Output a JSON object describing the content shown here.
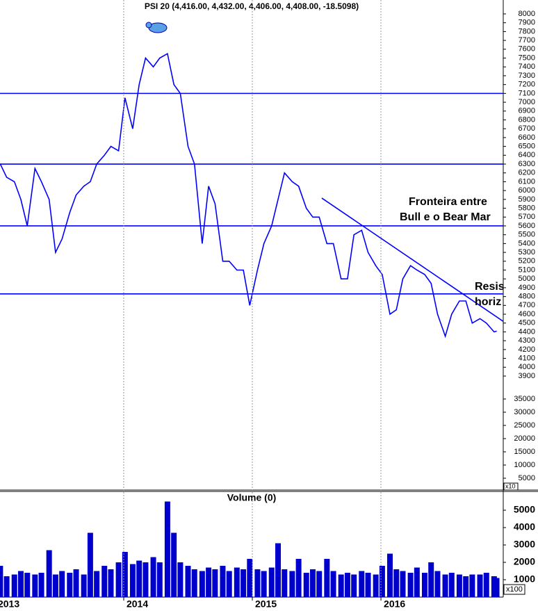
{
  "chart_data": [
    {
      "type": "line",
      "title": "PSI 20 (4,416.00, 4,432.00, 4,406.00, 4,408.00, -18.5098)",
      "x": [
        2013.04,
        2013.09,
        2013.15,
        2013.2,
        2013.25,
        2013.31,
        2013.36,
        2013.42,
        2013.47,
        2013.52,
        2013.58,
        2013.63,
        2013.69,
        2013.74,
        2013.79,
        2013.85,
        2013.9,
        2013.96,
        2014.01,
        2014.07,
        2014.12,
        2014.17,
        2014.23,
        2014.28,
        2014.34,
        2014.39,
        2014.44,
        2014.5,
        2014.55,
        2014.61,
        2014.66,
        2014.71,
        2014.77,
        2014.82,
        2014.88,
        2014.93,
        2014.98,
        2015.04,
        2015.09,
        2015.15,
        2015.2,
        2015.25,
        2015.31,
        2015.36,
        2015.42,
        2015.47,
        2015.52,
        2015.58,
        2015.63,
        2015.69,
        2015.74,
        2015.79,
        2015.85,
        2015.9,
        2015.96,
        2016.01,
        2016.07,
        2016.12,
        2016.17,
        2016.23,
        2016.28,
        2016.34,
        2016.39,
        2016.44,
        2016.5,
        2016.55,
        2016.61,
        2016.66,
        2016.71,
        2016.77,
        2016.82,
        2016.88,
        2016.9
      ],
      "values": [
        6300,
        6150,
        6100,
        5900,
        5600,
        6250,
        6100,
        5900,
        5300,
        5450,
        5750,
        5950,
        6050,
        6100,
        6300,
        6400,
        6500,
        6450,
        7050,
        6700,
        7200,
        7500,
        7400,
        7500,
        7550,
        7200,
        7100,
        6500,
        6300,
        5400,
        6050,
        5850,
        5200,
        5200,
        5100,
        5100,
        4700,
        5100,
        5400,
        5600,
        5900,
        6200,
        6100,
        6050,
        5800,
        5700,
        5700,
        5400,
        5400,
        5000,
        5000,
        5500,
        5550,
        5300,
        5150,
        5050,
        4600,
        4650,
        5000,
        5150,
        5100,
        5050,
        4950,
        4600,
        4350,
        4600,
        4750,
        4750,
        4500,
        4550,
        4500,
        4400,
        4408
      ],
      "color": "#0000ff",
      "xlim": [
        2013.038,
        2016.951
      ],
      "ylim": [
        3900,
        8000
      ],
      "yticks": [
        3900,
        4000,
        4100,
        4200,
        4300,
        4400,
        4500,
        4600,
        4700,
        4800,
        4900,
        5000,
        5100,
        5200,
        5300,
        5400,
        5500,
        5600,
        5700,
        5800,
        5900,
        6000,
        6100,
        6200,
        6300,
        6400,
        6500,
        6600,
        6700,
        6800,
        6900,
        7000,
        7100,
        7200,
        7300,
        7400,
        7500,
        7600,
        7700,
        7800,
        7900,
        8000
      ],
      "y2lim": [
        0,
        35000
      ],
      "y2ticks": [
        5000,
        10000,
        15000,
        20000,
        25000,
        30000,
        35000
      ],
      "scale_label": "x10",
      "reference_lines": [
        7100,
        6300,
        5600,
        4830
      ],
      "trendline": {
        "x": [
          2015.54,
          2016.95
        ],
        "values": [
          5915,
          4520
        ]
      },
      "annotations": [
        "Fronteira entre",
        "Bull e o Bear Mar",
        "Resis",
        "horiz"
      ]
    },
    {
      "type": "bar",
      "title": "Volume (0)",
      "x": [
        2013.04,
        2013.09,
        2013.15,
        2013.2,
        2013.25,
        2013.31,
        2013.36,
        2013.42,
        2013.47,
        2013.52,
        2013.58,
        2013.63,
        2013.69,
        2013.74,
        2013.79,
        2013.85,
        2013.9,
        2013.96,
        2014.01,
        2014.07,
        2014.12,
        2014.17,
        2014.23,
        2014.28,
        2014.34,
        2014.39,
        2014.44,
        2014.5,
        2014.55,
        2014.61,
        2014.66,
        2014.71,
        2014.77,
        2014.82,
        2014.88,
        2014.93,
        2014.98,
        2015.04,
        2015.09,
        2015.15,
        2015.2,
        2015.25,
        2015.31,
        2015.36,
        2015.42,
        2015.47,
        2015.52,
        2015.58,
        2015.63,
        2015.69,
        2015.74,
        2015.79,
        2015.85,
        2015.9,
        2015.96,
        2016.01,
        2016.07,
        2016.12,
        2016.17,
        2016.23,
        2016.28,
        2016.34,
        2016.39,
        2016.44,
        2016.5,
        2016.55,
        2016.61,
        2016.66,
        2016.71,
        2016.77,
        2016.82,
        2016.88,
        2016.9
      ],
      "values": [
        1800,
        1200,
        1300,
        1500,
        1400,
        1300,
        1400,
        2700,
        1300,
        1500,
        1400,
        1600,
        1300,
        3700,
        1500,
        1800,
        1600,
        2000,
        2600,
        1900,
        2100,
        2000,
        2300,
        2000,
        5500,
        3700,
        2000,
        1800,
        1600,
        1500,
        1700,
        1600,
        1800,
        1500,
        1700,
        1600,
        2200,
        1600,
        1500,
        1700,
        3100,
        1600,
        1500,
        2200,
        1400,
        1600,
        1500,
        2200,
        1500,
        1300,
        1400,
        1300,
        1500,
        1400,
        1300,
        1800,
        2500,
        1600,
        1500,
        1400,
        1700,
        1400,
        2000,
        1500,
        1300,
        1400,
        1300,
        1200,
        1300,
        1300,
        1400,
        1200,
        1100
      ],
      "color": "#0000cc",
      "xlim": [
        2013.038,
        2016.951
      ],
      "xticks": [
        2013,
        2014,
        2015,
        2016
      ],
      "ylim": [
        0,
        6000
      ],
      "yticks": [
        1000,
        2000,
        3000,
        4000,
        5000
      ],
      "scale_label": "x100"
    }
  ]
}
